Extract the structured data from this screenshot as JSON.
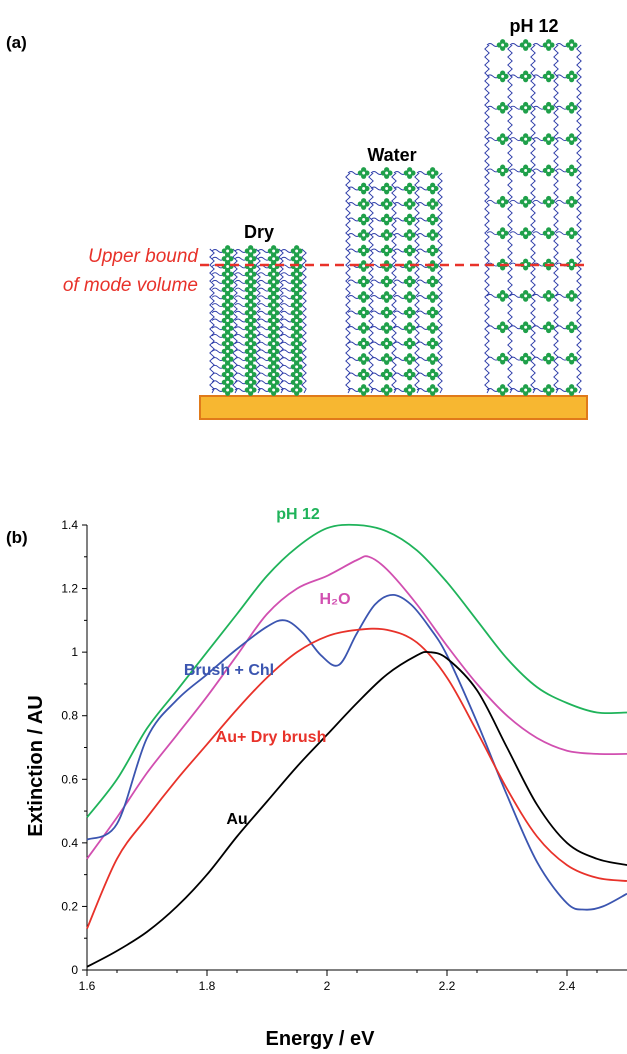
{
  "panel_a": {
    "label": "(a)",
    "states": [
      "Dry",
      "Water",
      "pH 12"
    ],
    "bound_label_line1": "Upper bound",
    "bound_label_line2": "of mode volume",
    "colors": {
      "chain": "#2b3aa8",
      "chromophore": "#1fa04a",
      "substrate": "#f7b731",
      "substrate_edge": "#e07a1a",
      "bound": "#e8322a"
    }
  },
  "panel_b": {
    "label": "(b)"
  },
  "chart_data": {
    "type": "line",
    "xlabel": "Energy / eV",
    "ylabel": "Extinction / AU",
    "xlim": [
      1.6,
      2.5
    ],
    "ylim": [
      0,
      1.4
    ],
    "xticks": [
      "1.6",
      "1.8",
      "2",
      "2.2",
      "2.4"
    ],
    "yticks": [
      "0",
      "0.2",
      "0.4",
      "0.6",
      "0.8",
      "1",
      "1.2",
      "1.4"
    ],
    "grid": false,
    "series": [
      {
        "name": "pH 12",
        "color": "#1fb35a",
        "x": [
          1.6,
          1.65,
          1.7,
          1.75,
          1.8,
          1.85,
          1.9,
          1.95,
          2.0,
          2.05,
          2.1,
          2.15,
          2.2,
          2.25,
          2.3,
          2.35,
          2.4,
          2.45,
          2.5
        ],
        "y": [
          0.48,
          0.6,
          0.76,
          0.88,
          1.0,
          1.12,
          1.24,
          1.33,
          1.39,
          1.4,
          1.38,
          1.32,
          1.22,
          1.1,
          0.98,
          0.89,
          0.84,
          0.81,
          0.81
        ]
      },
      {
        "name": "H₂O",
        "color": "#d14fb0",
        "x": [
          1.6,
          1.65,
          1.7,
          1.75,
          1.8,
          1.85,
          1.9,
          1.95,
          2.0,
          2.05,
          2.07,
          2.1,
          2.15,
          2.2,
          2.25,
          2.3,
          2.35,
          2.4,
          2.45,
          2.5
        ],
        "y": [
          0.35,
          0.48,
          0.62,
          0.74,
          0.86,
          0.99,
          1.12,
          1.2,
          1.24,
          1.29,
          1.3,
          1.26,
          1.15,
          1.02,
          0.9,
          0.8,
          0.73,
          0.69,
          0.68,
          0.68
        ]
      },
      {
        "name": "Brush + Chl",
        "color": "#3b55b0",
        "x": [
          1.6,
          1.65,
          1.7,
          1.75,
          1.8,
          1.85,
          1.9,
          1.93,
          1.96,
          1.99,
          2.02,
          2.05,
          2.08,
          2.11,
          2.14,
          2.17,
          2.2,
          2.25,
          2.3,
          2.35,
          2.4,
          2.43,
          2.46,
          2.5
        ],
        "y": [
          0.41,
          0.46,
          0.73,
          0.85,
          0.93,
          1.01,
          1.08,
          1.1,
          1.06,
          0.99,
          0.96,
          1.06,
          1.15,
          1.18,
          1.15,
          1.08,
          0.99,
          0.78,
          0.55,
          0.34,
          0.21,
          0.19,
          0.2,
          0.24
        ]
      },
      {
        "name": "Au+ Dry brush",
        "color": "#e8322a",
        "x": [
          1.6,
          1.65,
          1.7,
          1.75,
          1.8,
          1.85,
          1.9,
          1.95,
          2.0,
          2.05,
          2.1,
          2.15,
          2.2,
          2.25,
          2.3,
          2.35,
          2.4,
          2.45,
          2.5
        ],
        "y": [
          0.13,
          0.35,
          0.48,
          0.6,
          0.71,
          0.82,
          0.92,
          1.0,
          1.05,
          1.07,
          1.07,
          1.03,
          0.92,
          0.75,
          0.57,
          0.42,
          0.33,
          0.29,
          0.28
        ]
      },
      {
        "name": "Au",
        "color": "#000000",
        "x": [
          1.6,
          1.65,
          1.7,
          1.75,
          1.8,
          1.85,
          1.9,
          1.95,
          2.0,
          2.05,
          2.1,
          2.15,
          2.17,
          2.2,
          2.25,
          2.3,
          2.35,
          2.4,
          2.45,
          2.5
        ],
        "y": [
          0.01,
          0.06,
          0.12,
          0.2,
          0.3,
          0.42,
          0.53,
          0.64,
          0.74,
          0.84,
          0.93,
          0.99,
          1.0,
          0.98,
          0.88,
          0.7,
          0.52,
          0.4,
          0.35,
          0.33
        ]
      }
    ],
    "annotations": [
      {
        "text": "pH 12",
        "series": 0
      },
      {
        "text": "H₂O",
        "series": 1
      },
      {
        "text": "Brush + Chl",
        "series": 2
      },
      {
        "text": "Au+ Dry brush",
        "series": 3
      },
      {
        "text": "Au",
        "series": 4
      }
    ]
  }
}
